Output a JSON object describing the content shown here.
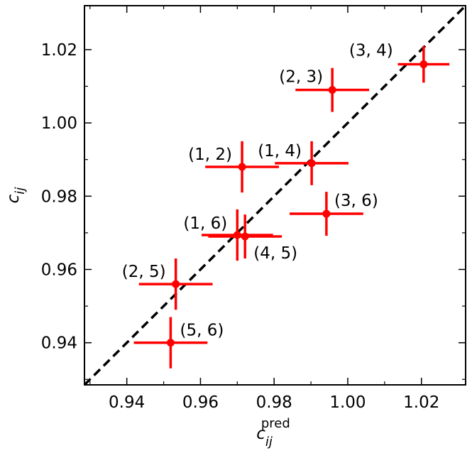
{
  "chart_data": {
    "type": "scatter",
    "xlabel": {
      "base": "c",
      "sub": "ij",
      "sup": "pred"
    },
    "ylabel": {
      "base": "c",
      "sub": "ij"
    },
    "labels": [
      "(3, 4)",
      "(2, 3)",
      "(1, 4)",
      "(1, 2)",
      "(3, 6)",
      "(1, 6)",
      "(4, 5)",
      "(2, 5)",
      "(5, 6)"
    ],
    "x": [
      1.0206,
      0.9958,
      0.9902,
      0.9713,
      0.9942,
      0.97,
      0.9721,
      0.9533,
      0.9519
    ],
    "values": [
      1.016,
      1.009,
      0.989,
      0.988,
      0.9752,
      0.9694,
      0.969,
      0.956,
      0.94
    ],
    "xerr": [
      0.007,
      0.01,
      0.01,
      0.01,
      0.01,
      0.0097,
      0.01,
      0.01,
      0.01
    ],
    "yerr": [
      0.005,
      0.006,
      0.006,
      0.007,
      0.006,
      0.007,
      0.006,
      0.007,
      0.007
    ],
    "color": "#ff0000",
    "xlim": [
      0.9285,
      1.032
    ],
    "ylim": [
      0.9285,
      1.032
    ],
    "xticks": [
      0.94,
      0.96,
      0.98,
      {
        "value": 1.0,
        "label": "1.00"
      },
      1.02
    ],
    "yticks": [
      0.94,
      0.96,
      0.98,
      {
        "value": 1.0,
        "label": "1.00"
      },
      1.02
    ],
    "diagonal": true
  }
}
